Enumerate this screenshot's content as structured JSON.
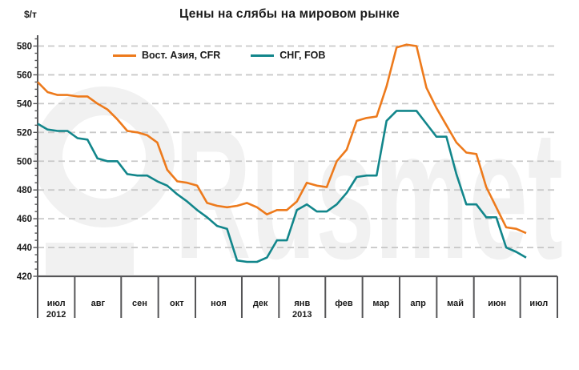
{
  "title": "Цены на слябы на мировом рынке",
  "y_axis_unit": "$/т",
  "watermark": "Rusmet",
  "colors": {
    "cfr_orange": "#ED7A1C",
    "fob_teal": "#12868B",
    "grid": "#C9C9C9",
    "axis": "#555557",
    "text": "#1A1A1A",
    "watermark": "#F1F1F1"
  },
  "chart_data": {
    "type": "line",
    "title": "Цены на слябы на мировом рынке",
    "ylabel": "$/т",
    "ylim": [
      420,
      580
    ],
    "y_tick_step": 20,
    "y_minor_tick_step": 5,
    "grid": "horizontal-dashed",
    "legend_position": "top-inside",
    "x_axis": {
      "months": [
        {
          "label": "июл",
          "year": "2012",
          "weeks": 4
        },
        {
          "label": "авг",
          "year": "",
          "weeks": 5
        },
        {
          "label": "сен",
          "year": "",
          "weeks": 4
        },
        {
          "label": "окт",
          "year": "",
          "weeks": 4
        },
        {
          "label": "ноя",
          "year": "",
          "weeks": 5
        },
        {
          "label": "дек",
          "year": "",
          "weeks": 4
        },
        {
          "label": "янв",
          "year": "2013",
          "weeks": 5
        },
        {
          "label": "фев",
          "year": "",
          "weeks": 4
        },
        {
          "label": "мар",
          "year": "",
          "weeks": 4
        },
        {
          "label": "апр",
          "year": "",
          "weeks": 4
        },
        {
          "label": "май",
          "year": "",
          "weeks": 4
        },
        {
          "label": "июн",
          "year": "",
          "weeks": 5
        },
        {
          "label": "июл",
          "year": "",
          "weeks": 4
        }
      ]
    },
    "series": [
      {
        "name": "Вост. Азия, CFR",
        "color": "#ED7A1C",
        "values": [
          555,
          548,
          546,
          546,
          545,
          545,
          540,
          536,
          529,
          521,
          520,
          518,
          513,
          494,
          486,
          485,
          483,
          471,
          469,
          468,
          469,
          471,
          468,
          463,
          466,
          466,
          472,
          485,
          483,
          482,
          500,
          508,
          528,
          530,
          531,
          552,
          579,
          581,
          580,
          551,
          537,
          525,
          513,
          506,
          505,
          482,
          468,
          454,
          453,
          450
        ]
      },
      {
        "name": "СНГ, FOB",
        "color": "#12868B",
        "values": [
          526,
          522,
          521,
          521,
          516,
          515,
          502,
          500,
          500,
          491,
          490,
          490,
          486,
          483,
          477,
          472,
          466,
          461,
          455,
          453,
          431,
          430,
          430,
          433,
          445,
          445,
          466,
          470,
          465,
          465,
          470,
          478,
          489,
          490,
          490,
          528,
          535,
          535,
          535,
          526,
          517,
          517,
          491,
          470,
          470,
          461,
          461,
          440,
          437,
          433
        ]
      }
    ]
  }
}
